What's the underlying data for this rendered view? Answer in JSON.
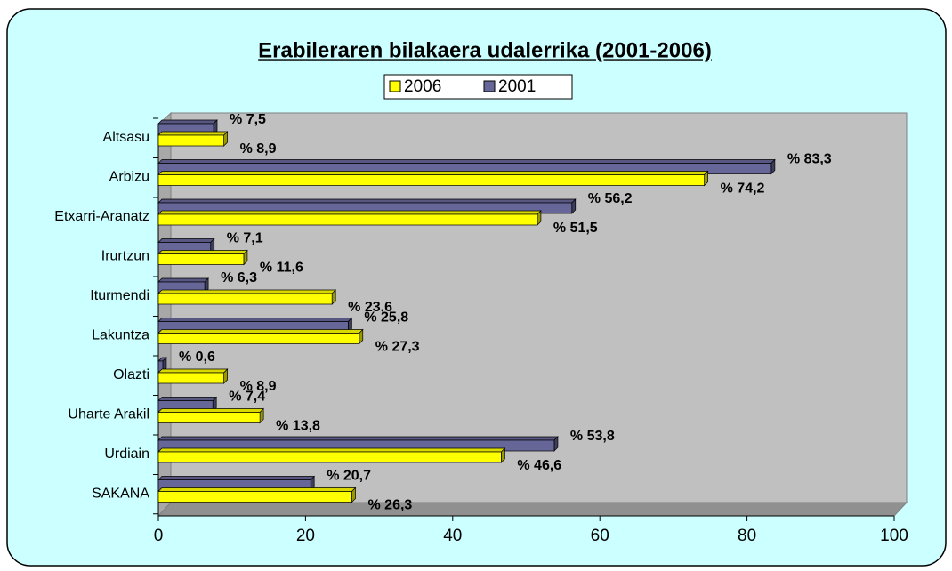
{
  "chart_data": {
    "type": "bar3d_horizontal",
    "title": "Erabileraren bilakaera udalerrika (2001-2006)",
    "categories": [
      "Altsasu",
      "Arbizu",
      "Etxarri-Aranatz",
      "Irurtzun",
      "Iturmendi",
      "Lakuntza",
      "Olazti",
      "Uharte Arakil",
      "Urdiain",
      "SAKANA"
    ],
    "series": [
      {
        "name": "2006",
        "color": "#ffff00",
        "values": [
          8.9,
          74.2,
          51.5,
          11.6,
          23.6,
          27.3,
          8.9,
          13.8,
          46.6,
          26.3
        ],
        "value_labels": [
          "% 8,9",
          "% 74,2",
          "% 51,5",
          "% 11,6",
          "% 23,6",
          "% 27,3",
          "% 8,9",
          "% 13,8",
          "% 46,6",
          "% 26,3"
        ]
      },
      {
        "name": "2001",
        "color": "#666699",
        "values": [
          7.5,
          83.3,
          56.2,
          7.1,
          6.3,
          25.8,
          0.6,
          7.4,
          53.8,
          20.7
        ],
        "value_labels": [
          "% 7,5",
          "% 83,3",
          "% 56,2",
          "% 7,1",
          "% 6,3",
          "% 25,8",
          "% 0,6",
          "% 7,4",
          "% 53,8",
          "% 20,7"
        ]
      }
    ],
    "xlim": [
      0,
      100
    ],
    "xticks": [
      0,
      20,
      40,
      60,
      80,
      100
    ],
    "legend": "top"
  }
}
